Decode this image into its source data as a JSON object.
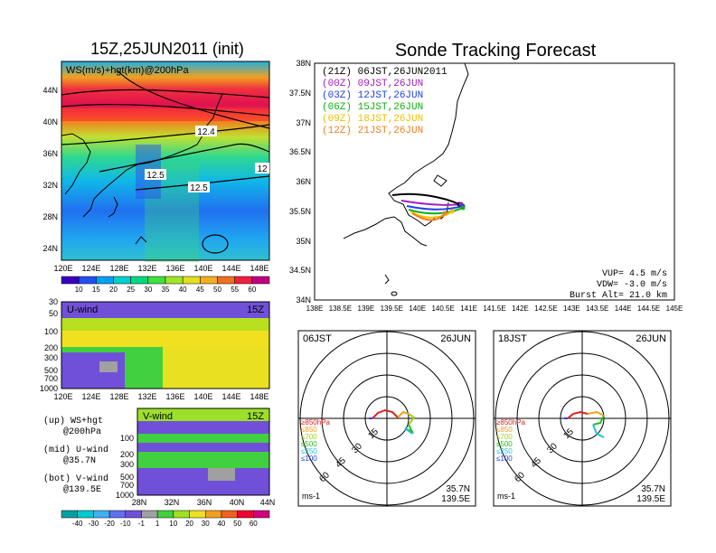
{
  "header": {
    "left_title": "15Z,25JUN2011 (init)",
    "right_title": "Sonde Tracking Forecast"
  },
  "map_panel": {
    "label": "WS(m/s)+hgt(km)@200hPa",
    "yticks": [
      "44N",
      "40N",
      "36N",
      "32N",
      "28N",
      "24N"
    ],
    "xticks": [
      "120E",
      "124E",
      "128E",
      "132E",
      "136E",
      "140E",
      "144E",
      "148E"
    ],
    "contour_labels": [
      "12.4",
      "12.5",
      "12.5",
      "12"
    ]
  },
  "ws_colorbar": {
    "labels": [
      "10",
      "15",
      "20",
      "25",
      "30",
      "35",
      "40",
      "45",
      "50",
      "55",
      "60"
    ],
    "colors": [
      "#3a00c0",
      "#2050f0",
      "#00a0f0",
      "#00d0c8",
      "#00d880",
      "#40e040",
      "#a0e628",
      "#e0e020",
      "#f0b020",
      "#f07020",
      "#f02040",
      "#c00080"
    ]
  },
  "u_panel": {
    "label": "U-wind",
    "time": "15Z",
    "yticks": [
      "30",
      "50",
      "100",
      "200",
      "300",
      "500",
      "700",
      "1000"
    ],
    "xticks": [
      "120E",
      "124E",
      "128E",
      "132E",
      "136E",
      "140E",
      "144E",
      "148E"
    ]
  },
  "v_panel": {
    "label": "V-wind",
    "time": "15Z",
    "yticks": [
      "100",
      "200",
      "300",
      "500",
      "700",
      "1000"
    ],
    "xticks": [
      "28N",
      "32N",
      "36N",
      "40N",
      "44N"
    ]
  },
  "legend_notes": {
    "up_1": "(up) WS+hgt",
    "up_2": "@200hPa",
    "mid_1": "(mid) U-wind",
    "mid_2": "@35.7N",
    "bot_1": "(bot) V-wind",
    "bot_2": "@139.5E"
  },
  "wind_colorbar": {
    "labels": [
      "-40",
      "-30",
      "-20",
      "-10",
      "-1",
      "1",
      "10",
      "20",
      "30",
      "40",
      "50",
      "60"
    ],
    "colors": [
      "#00a0a0",
      "#00c8d0",
      "#40b0f0",
      "#6070f0",
      "#7050d8",
      "#a0a0a0",
      "#40d040",
      "#a0e020",
      "#f0e020",
      "#f0a020",
      "#f06020",
      "#f00030",
      "#d00080"
    ]
  },
  "track_panel": {
    "yticks": [
      "38N",
      "37.5N",
      "37N",
      "36.5N",
      "36N",
      "35.5N",
      "35N",
      "34.5N",
      "34N"
    ],
    "xticks": [
      "138E",
      "138.5E",
      "139E",
      "139.5E",
      "140E",
      "140.5E",
      "141E",
      "141.5E",
      "142E",
      "142.5E",
      "143E",
      "143.5E",
      "144E",
      "144.5E",
      "145E"
    ],
    "legend": [
      {
        "text": "(21Z) 06JST,26JUN2011",
        "color": "#000000"
      },
      {
        "text": "(00Z) 09JST,26JUN",
        "color": "#a020c0"
      },
      {
        "text": "(03Z) 12JST,26JUN",
        "color": "#2040f0"
      },
      {
        "text": "(06Z) 15JST,26JUN",
        "color": "#10b010"
      },
      {
        "text": "(09Z) 18JST,26JUN",
        "color": "#f0c000"
      },
      {
        "text": "(12Z) 21JST,26JUN",
        "color": "#f08020"
      }
    ],
    "vup": "VUP= 4.5 m/s",
    "vdw": "VDW= -3.0 m/s",
    "burst": "Burst Alt= 21.0 km"
  },
  "hodo_left": {
    "time": "06JST",
    "date": "26JUN",
    "rings": [
      "15",
      "30",
      "45",
      "60"
    ],
    "levels": [
      {
        "text": "≥850hPa",
        "color": "#e02020"
      },
      {
        "text": "≤850",
        "color": "#f0a020"
      },
      {
        "text": "≤700",
        "color": "#a0d020"
      },
      {
        "text": "≤500",
        "color": "#20c020"
      },
      {
        "text": "≤250",
        "color": "#20c0e0"
      },
      {
        "text": "≤100",
        "color": "#2040f0"
      }
    ],
    "units": "ms-1",
    "lat": "35.7N",
    "lon": "139.5E"
  },
  "hodo_right": {
    "time": "18JST",
    "date": "26JUN",
    "rings": [
      "15",
      "30",
      "45",
      "60"
    ],
    "levels": [
      {
        "text": "≥850hPa",
        "color": "#e02020"
      },
      {
        "text": "≤850",
        "color": "#f0a020"
      },
      {
        "text": "≤700",
        "color": "#a0d020"
      },
      {
        "text": "≤500",
        "color": "#20c020"
      },
      {
        "text": "≤250",
        "color": "#20c0e0"
      },
      {
        "text": "≤100",
        "color": "#2040f0"
      }
    ],
    "units": "ms-1",
    "lat": "35.7N",
    "lon": "139.5E"
  }
}
